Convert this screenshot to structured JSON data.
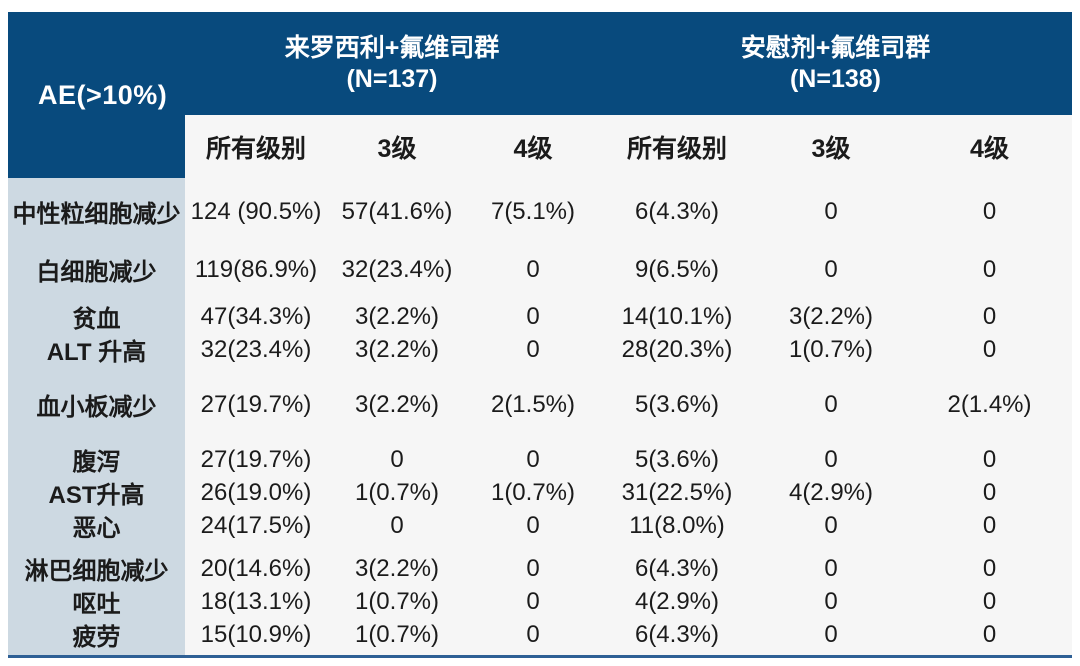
{
  "table": {
    "corner_label": "AE(>10%)",
    "groups": [
      {
        "title": "来罗西利+氟维司群",
        "n": "(N=137)"
      },
      {
        "title": "安慰剂+氟维司群",
        "n": "(N=138)"
      }
    ],
    "sub_headers": [
      "所有级别",
      "3级",
      "4级",
      "所有级别",
      "3级",
      "4级"
    ],
    "rows": [
      {
        "label": "中性粒细胞减少",
        "values": [
          "124 (90.5%)",
          "57(41.6%)",
          "7(5.1%)",
          "6(4.3%)",
          "0",
          "0"
        ]
      },
      {
        "label": "白细胞减少",
        "values": [
          "119(86.9%)",
          "32(23.4%)",
          "0",
          "9(6.5%)",
          "0",
          "0"
        ]
      },
      {
        "label": "贫血",
        "values": [
          "47(34.3%)",
          "3(2.2%)",
          "0",
          "14(10.1%)",
          "3(2.2%)",
          "0"
        ]
      },
      {
        "label": "ALT 升高",
        "values": [
          "32(23.4%)",
          "3(2.2%)",
          "0",
          "28(20.3%)",
          "1(0.7%)",
          "0"
        ]
      },
      {
        "label": "血小板减少",
        "values": [
          "27(19.7%)",
          "3(2.2%)",
          "2(1.5%)",
          "5(3.6%)",
          "0",
          "2(1.4%)"
        ]
      },
      {
        "label": "腹泻",
        "values": [
          "27(19.7%)",
          "0",
          "0",
          "5(3.6%)",
          "0",
          "0"
        ]
      },
      {
        "label": "AST升高",
        "values": [
          "26(19.0%)",
          "1(0.7%)",
          "1(0.7%)",
          "31(22.5%)",
          "4(2.9%)",
          "0"
        ]
      },
      {
        "label": "恶心",
        "values": [
          "24(17.5%)",
          "0",
          "0",
          "11(8.0%)",
          "0",
          "0"
        ]
      },
      {
        "label": "淋巴细胞减少",
        "values": [
          "20(14.6%)",
          "3(2.2%)",
          "0",
          "6(4.3%)",
          "0",
          "0"
        ]
      },
      {
        "label": "呕吐",
        "values": [
          "18(13.1%)",
          "1(0.7%)",
          "0",
          "4(2.9%)",
          "0",
          "0"
        ]
      },
      {
        "label": "疲劳",
        "values": [
          "15(10.9%)",
          "1(0.7%)",
          "0",
          "6(4.3%)",
          "0",
          "0"
        ]
      }
    ],
    "colors": {
      "header_blue": "#084a7d",
      "label_column_blue": "#cdd9e2",
      "body_background": "#f6f6f6",
      "bottom_border_blue": "#2e6095",
      "header_text": "#ffffff",
      "body_text": "#1b1b1b"
    }
  }
}
